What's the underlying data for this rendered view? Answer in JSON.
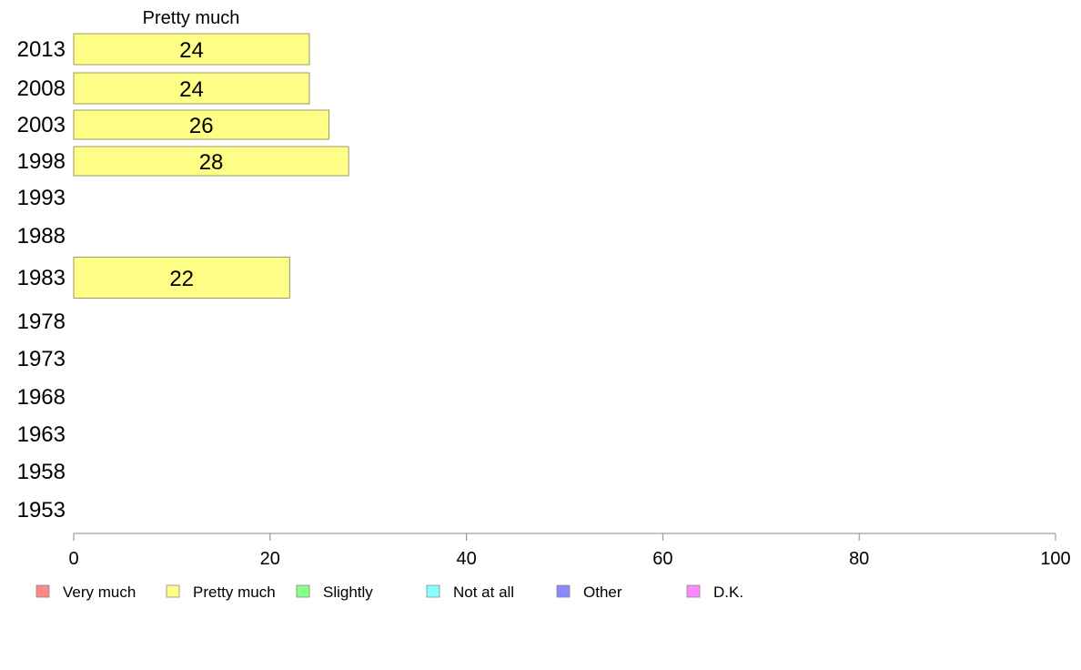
{
  "chart_data": {
    "type": "bar",
    "orientation": "horizontal",
    "series_title": "Pretty much",
    "categories": [
      "2013",
      "2008",
      "2003",
      "1998",
      "1993",
      "1988",
      "1983",
      "1978",
      "1973",
      "1968",
      "1963",
      "1958",
      "1953"
    ],
    "series": [
      {
        "name": "Pretty much",
        "color": "#ffff88",
        "values": [
          24,
          24,
          26,
          28,
          null,
          null,
          22,
          null,
          null,
          null,
          null,
          null,
          null
        ],
        "labels": [
          "24",
          "24",
          "26",
          "28",
          "",
          "",
          "22",
          "",
          "",
          "",
          "",
          "",
          ""
        ]
      }
    ],
    "xlim": [
      0,
      100
    ],
    "xticks": [
      0,
      20,
      40,
      60,
      80,
      100
    ],
    "legend": [
      {
        "label": "Very much",
        "color": "#ff8888"
      },
      {
        "label": "Pretty much",
        "color": "#ffff88"
      },
      {
        "label": "Slightly",
        "color": "#88ff88"
      },
      {
        "label": "Not at all",
        "color": "#88ffff"
      },
      {
        "label": "Other",
        "color": "#8888ff"
      },
      {
        "label": "D.K.",
        "color": "#ff88ff"
      }
    ],
    "legend_position": "bottom",
    "grid": false
  }
}
